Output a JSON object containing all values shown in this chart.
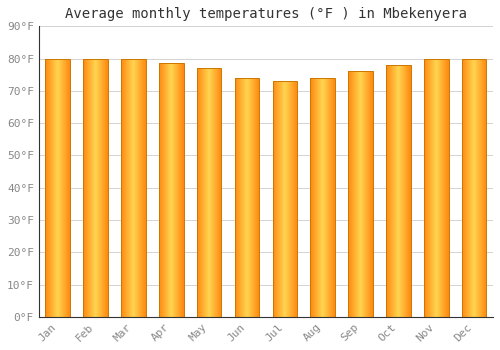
{
  "title": "Average monthly temperatures (°F ) in Mbekenyera",
  "months": [
    "Jan",
    "Feb",
    "Mar",
    "Apr",
    "May",
    "Jun",
    "Jul",
    "Aug",
    "Sep",
    "Oct",
    "Nov",
    "Dec"
  ],
  "values": [
    80,
    80,
    80,
    78.5,
    77,
    74,
    73,
    74,
    76,
    78,
    80,
    80
  ],
  "ylim": [
    0,
    90
  ],
  "yticks": [
    0,
    10,
    20,
    30,
    40,
    50,
    60,
    70,
    80,
    90
  ],
  "bar_color_center": "#FFB300",
  "bar_color_edge": "#FF8C00",
  "bar_color_highlight": "#FFD050",
  "background_color": "#FFFFFF",
  "grid_color": "#CCCCCC",
  "title_fontsize": 10,
  "tick_fontsize": 8,
  "font_family": "monospace",
  "bar_width": 0.65
}
